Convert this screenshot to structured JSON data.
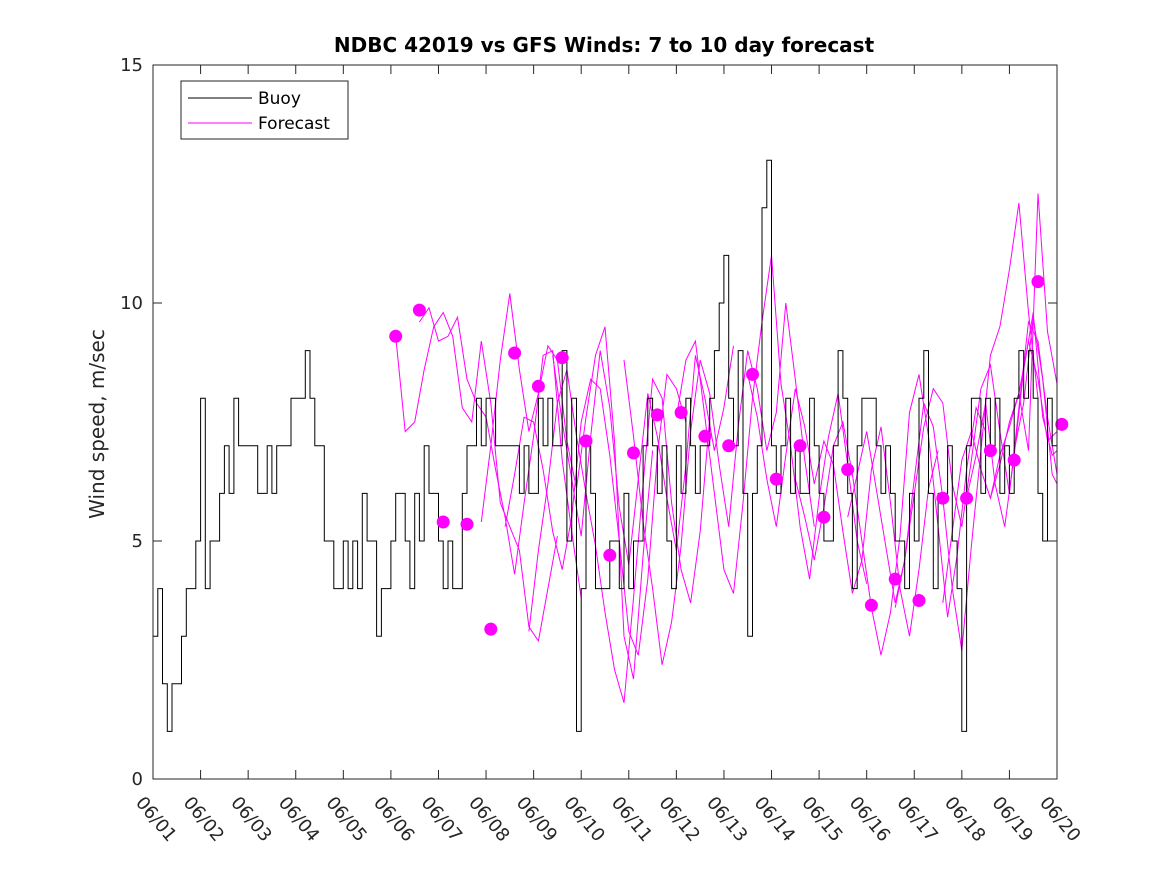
{
  "chart_data": {
    "type": "line",
    "title": "NDBC 42019 vs GFS Winds: 7 to 10 day forecast",
    "xlabel": "",
    "ylabel": "Wind speed, m/sec",
    "xlim": [
      "06/01",
      "06/20"
    ],
    "ylim": [
      0,
      15
    ],
    "x_ticks": [
      "06/01",
      "06/02",
      "06/03",
      "06/04",
      "06/05",
      "06/06",
      "06/07",
      "06/08",
      "06/09",
      "06/10",
      "06/11",
      "06/12",
      "06/13",
      "06/14",
      "06/15",
      "06/16",
      "06/17",
      "06/18",
      "06/19",
      "06/20"
    ],
    "y_ticks": [
      0,
      5,
      10,
      15
    ],
    "grid": false,
    "legend_position": "top-left",
    "legend": [
      {
        "label": "Buoy",
        "color": "#000000"
      },
      {
        "label": "Forecast",
        "color": "#ff00ff"
      }
    ],
    "series": [
      {
        "name": "Buoy",
        "color": "#000000",
        "x_days_since_0601": [
          0.0,
          0.1,
          0.2,
          0.3,
          0.4,
          0.5,
          0.6,
          0.7,
          0.8,
          0.9,
          1.0,
          1.1,
          1.2,
          1.3,
          1.4,
          1.5,
          1.6,
          1.7,
          1.8,
          1.9,
          2.0,
          2.1,
          2.2,
          2.3,
          2.4,
          2.5,
          2.6,
          2.7,
          2.8,
          2.9,
          3.0,
          3.1,
          3.2,
          3.3,
          3.4,
          3.5,
          3.6,
          3.7,
          3.8,
          3.9,
          4.0,
          4.1,
          4.2,
          4.3,
          4.4,
          4.5,
          4.6,
          4.7,
          4.8,
          4.9,
          5.0,
          5.1,
          5.2,
          5.3,
          5.4,
          5.5,
          5.6,
          5.7,
          5.8,
          5.9,
          6.0,
          6.1,
          6.2,
          6.3,
          6.4,
          6.5,
          6.6,
          6.7,
          6.8,
          6.9,
          7.0,
          7.1,
          7.2,
          7.3,
          7.4,
          7.5,
          7.6,
          7.7,
          7.8,
          7.9,
          8.0,
          8.1,
          8.2,
          8.3,
          8.4,
          8.5,
          8.6,
          8.7,
          8.8,
          8.9,
          9.0,
          9.1,
          9.2,
          9.3,
          9.4,
          9.5,
          9.6,
          9.7,
          9.8,
          9.9,
          10.0,
          10.1,
          10.2,
          10.3,
          10.4,
          10.5,
          10.6,
          10.7,
          10.8,
          10.9,
          11.0,
          11.1,
          11.2,
          11.3,
          11.4,
          11.5,
          11.6,
          11.7,
          11.8,
          11.9,
          12.0,
          12.1,
          12.2,
          12.3,
          12.4,
          12.5,
          12.6,
          12.7,
          12.8,
          12.9,
          13.0,
          13.1,
          13.2,
          13.3,
          13.4,
          13.5,
          13.6,
          13.7,
          13.8,
          13.9,
          14.0,
          14.1,
          14.2,
          14.3,
          14.4,
          14.5,
          14.6,
          14.7,
          14.8,
          14.9,
          15.0,
          15.1,
          15.2,
          15.3,
          15.4,
          15.5,
          15.6,
          15.7,
          15.8,
          15.9,
          16.0,
          16.1,
          16.2,
          16.3,
          16.4,
          16.5,
          16.6,
          16.7,
          16.8,
          16.9,
          17.0,
          17.1,
          17.2,
          17.3,
          17.4,
          17.5,
          17.6,
          17.7,
          17.8,
          17.9,
          18.0,
          18.1,
          18.2,
          18.3,
          18.4,
          18.5,
          18.6,
          18.7,
          18.8,
          18.9,
          19.0
        ],
        "values": [
          3,
          4,
          2,
          1,
          2,
          2,
          3,
          4,
          4,
          5,
          8,
          4,
          5,
          5,
          6,
          7,
          6,
          8,
          7,
          7,
          7,
          7,
          6,
          6,
          7,
          6,
          7,
          7,
          7,
          8,
          8,
          8,
          9,
          8,
          7,
          7,
          5,
          5,
          4,
          4,
          5,
          4,
          5,
          4,
          6,
          5,
          5,
          3,
          4,
          4,
          5,
          6,
          6,
          5,
          4,
          6,
          5,
          7,
          6,
          6,
          5,
          4,
          5,
          4,
          4,
          6,
          7,
          7,
          8,
          7,
          8,
          8,
          7,
          7,
          7,
          7,
          7,
          6,
          7,
          6,
          6,
          8,
          7,
          8,
          7,
          7,
          9,
          5,
          8,
          1,
          4,
          7,
          6,
          4,
          4,
          4,
          5,
          5,
          4,
          6,
          4,
          5,
          5,
          7,
          8,
          7,
          6,
          7,
          5,
          4,
          7,
          6,
          8,
          7,
          6,
          7,
          7,
          8,
          9,
          10,
          11,
          8,
          7,
          9,
          6,
          3,
          6,
          7,
          12,
          13,
          7,
          6,
          7,
          8,
          6,
          7,
          6,
          6,
          8,
          7,
          6,
          5,
          5,
          7,
          9,
          8,
          6,
          4,
          7,
          8,
          8,
          8,
          7,
          6,
          7,
          6,
          5,
          5,
          4,
          6,
          5,
          8,
          9,
          6,
          4,
          6,
          6,
          7,
          5,
          4,
          1,
          7,
          8,
          8,
          6,
          8,
          7,
          8,
          6,
          7,
          6,
          8,
          9,
          8,
          9,
          8,
          6,
          5,
          8,
          7
        ]
      },
      {
        "name": "Forecast",
        "color": "#ff00ff",
        "note": "several forecast run lines",
        "runs": [
          {
            "x": [
              5.1,
              5.3,
              5.5,
              5.7,
              5.9,
              6.1,
              6.3,
              6.5,
              6.7,
              6.9,
              7.1,
              7.3,
              7.5,
              7.7,
              7.9,
              8.1,
              8.3,
              8.5
            ],
            "y": [
              9.3,
              7.3,
              7.5,
              8.6,
              9.5,
              9.8,
              9.3,
              7.8,
              7.5,
              9.2,
              7.9,
              5.8,
              5.3,
              4.8,
              3.2,
              2.9,
              4.0,
              5.1
            ]
          },
          {
            "x": [
              5.6,
              5.8,
              6.0,
              6.2,
              6.4,
              6.6,
              6.8,
              7.0,
              7.2,
              7.4,
              7.6,
              7.8,
              8.0,
              8.2,
              8.4,
              8.6,
              8.8,
              9.0
            ],
            "y": [
              9.6,
              9.9,
              9.2,
              9.3,
              9.7,
              8.4,
              7.9,
              7.6,
              6.5,
              5.5,
              4.3,
              5.8,
              7.2,
              8.9,
              9.0,
              6.7,
              5.2,
              3.8
            ]
          },
          {
            "x": [
              6.9,
              7.1,
              7.3,
              7.5,
              7.7,
              7.9,
              8.1,
              8.3,
              8.5,
              8.7,
              8.9,
              9.1,
              9.3,
              9.5,
              9.7,
              9.9,
              10.1,
              10.3,
              10.5
            ],
            "y": [
              5.4,
              7.0,
              8.8,
              10.2,
              8.6,
              7.3,
              8.1,
              9.1,
              8.8,
              7.1,
              6.1,
              7.6,
              8.9,
              9.5,
              7.1,
              3.0,
              2.1,
              4.7,
              6.9
            ]
          },
          {
            "x": [
              7.4,
              7.6,
              7.8,
              8.0,
              8.2,
              8.4,
              8.6,
              8.8,
              9.0,
              9.2,
              9.4,
              9.6,
              9.8,
              10.0,
              10.2,
              10.4,
              10.6,
              10.8,
              11.0,
              11.2
            ],
            "y": [
              5.3,
              6.4,
              7.6,
              7.5,
              6.5,
              5.2,
              4.4,
              5.5,
              7.5,
              8.4,
              8.2,
              6.8,
              5.0,
              3.1,
              2.6,
              4.2,
              6.8,
              8.5,
              8.2,
              7.5
            ]
          },
          {
            "x": [
              7.9,
              8.1,
              8.3,
              8.5,
              8.7,
              8.9,
              9.1,
              9.3,
              9.5,
              9.7,
              9.9,
              10.1,
              10.3,
              10.5,
              10.7,
              10.9,
              11.1,
              11.3,
              11.5,
              11.7
            ],
            "y": [
              3.1,
              4.8,
              6.2,
              7.9,
              8.6,
              7.2,
              6.0,
              4.9,
              3.5,
              2.3,
              1.6,
              3.8,
              6.2,
              8.4,
              8.0,
              5.8,
              4.4,
              3.7,
              5.2,
              7.6
            ]
          },
          {
            "x": [
              8.4,
              8.6,
              8.8,
              9.0,
              9.2,
              9.4,
              9.6,
              9.8,
              10.0,
              10.2,
              10.4,
              10.6,
              10.8,
              11.0,
              11.2,
              11.4,
              11.6,
              11.8,
              12.0,
              12.2
            ],
            "y": [
              8.9,
              7.5,
              6.3,
              5.1,
              7.2,
              9.0,
              7.8,
              5.7,
              4.5,
              6.3,
              8.1,
              7.2,
              5.9,
              4.8,
              6.6,
              8.9,
              8.0,
              6.9,
              7.8,
              9.1
            ]
          },
          {
            "x": [
              9.9,
              10.1,
              10.3,
              10.5,
              10.7,
              10.9,
              11.1,
              11.3,
              11.5,
              11.7,
              11.9,
              12.1,
              12.3,
              12.5,
              12.7,
              12.9,
              13.1,
              13.3,
              13.5,
              13.7,
              13.9
            ],
            "y": [
              8.8,
              7.2,
              5.4,
              4.0,
              2.4,
              3.3,
              4.9,
              7.3,
              8.8,
              8.1,
              6.6,
              5.3,
              7.4,
              9.0,
              8.2,
              6.9,
              7.7,
              10.0,
              8.4,
              6.7,
              5.3
            ]
          },
          {
            "x": [
              11.0,
              11.2,
              11.4,
              11.6,
              11.8,
              12.0,
              12.2,
              12.4,
              12.6,
              12.8,
              13.0,
              13.2,
              13.4,
              13.6,
              13.8,
              14.0,
              14.2,
              14.4,
              14.6,
              14.8,
              15.0
            ],
            "y": [
              7.6,
              8.8,
              9.2,
              7.6,
              6.0,
              4.4,
              3.9,
              5.8,
              8.0,
              9.6,
              11.0,
              8.3,
              7.0,
              5.3,
              4.2,
              5.9,
              7.2,
              8.1,
              6.6,
              5.0,
              4.1
            ]
          },
          {
            "x": [
              12.5,
              12.7,
              12.9,
              13.1,
              13.3,
              13.5,
              13.7,
              13.9,
              14.1,
              14.3,
              14.5,
              14.7,
              14.9,
              15.1,
              15.3,
              15.5,
              15.7,
              15.9,
              16.1,
              16.3,
              16.5
            ],
            "y": [
              8.5,
              7.6,
              6.3,
              5.3,
              6.8,
              8.2,
              7.4,
              6.2,
              7.1,
              6.6,
              5.2,
              3.9,
              4.6,
              6.5,
              7.4,
              5.8,
              4.0,
              3.0,
              4.4,
              6.1,
              6.9
            ]
          },
          {
            "x": [
              13.5,
              13.7,
              13.9,
              14.1,
              14.3,
              14.5,
              14.7,
              14.9,
              15.1,
              15.3,
              15.5,
              15.7,
              15.9,
              16.1,
              16.3,
              16.5,
              16.7,
              16.9,
              17.1,
              17.3,
              17.5
            ],
            "y": [
              6.3,
              5.5,
              4.6,
              5.7,
              7.0,
              7.5,
              6.4,
              5.0,
              3.6,
              2.6,
              3.5,
              5.1,
              7.7,
              8.5,
              7.2,
              5.3,
              3.4,
              4.7,
              6.5,
              7.8,
              7.3
            ]
          },
          {
            "x": [
              14.6,
              14.8,
              15.0,
              15.2,
              15.4,
              15.6,
              15.8,
              16.0,
              16.2,
              16.4,
              16.6,
              16.8,
              17.0,
              17.2,
              17.4,
              17.6,
              17.8,
              18.0,
              18.2,
              18.4,
              18.6
            ],
            "y": [
              5.5,
              6.4,
              7.3,
              6.1,
              4.9,
              3.7,
              4.6,
              6.3,
              7.9,
              7.4,
              5.9,
              4.0,
              2.7,
              4.9,
              6.9,
              8.9,
              9.5,
              10.7,
              12.1,
              9.8,
              8.0
            ]
          },
          {
            "x": [
              15.6,
              15.8,
              16.0,
              16.2,
              16.4,
              16.6,
              16.8,
              17.0,
              17.2,
              17.4,
              17.6,
              17.8,
              18.0,
              18.2,
              18.4,
              18.6,
              18.8,
              19.0
            ],
            "y": [
              3.6,
              4.6,
              6.0,
              7.4,
              8.2,
              7.9,
              6.2,
              5.3,
              6.7,
              8.2,
              8.7,
              7.3,
              6.0,
              7.8,
              9.6,
              9.2,
              7.6,
              6.4
            ]
          },
          {
            "x": [
              16.6,
              16.8,
              17.0,
              17.2,
              17.4,
              17.6,
              17.8,
              18.0,
              18.2,
              18.4,
              18.6,
              18.8,
              19.0
            ],
            "y": [
              3.7,
              5.2,
              6.7,
              7.3,
              6.5,
              5.9,
              6.8,
              7.4,
              8.1,
              6.9,
              12.3,
              9.4,
              8.3
            ]
          },
          {
            "x": [
              17.1,
              17.3,
              17.5,
              17.7,
              17.9,
              18.1,
              18.3,
              18.5,
              18.7,
              18.9,
              19.0
            ],
            "y": [
              5.9,
              6.8,
              7.9,
              6.2,
              5.3,
              6.8,
              8.6,
              9.8,
              7.6,
              6.8,
              6.9
            ]
          },
          {
            "x": [
              17.6,
              17.8,
              18.0,
              18.2,
              18.4,
              18.6,
              18.8,
              19.0
            ],
            "y": [
              5.9,
              6.6,
              7.5,
              8.1,
              9.2,
              8.4,
              7.1,
              7.3
            ]
          },
          {
            "x": [
              18.1,
              18.3,
              18.5,
              18.7,
              18.9,
              19.0
            ],
            "y": [
              6.9,
              7.9,
              9.7,
              8.4,
              6.4,
              6.2
            ]
          }
        ],
        "markers": {
          "x": [
            5.1,
            5.6,
            6.1,
            6.6,
            7.1,
            7.6,
            8.1,
            8.6,
            9.1,
            9.6,
            10.1,
            10.6,
            11.1,
            11.6,
            12.1,
            12.6,
            13.1,
            13.6,
            14.1,
            14.6,
            15.1,
            15.6,
            16.1,
            16.6,
            17.1,
            17.6,
            18.1,
            18.6,
            19.1
          ],
          "y": [
            9.3,
            9.85,
            5.4,
            5.35,
            3.15,
            8.95,
            8.25,
            8.85,
            7.1,
            4.7,
            6.85,
            7.65,
            7.7,
            7.2,
            7.0,
            8.5,
            6.3,
            7.0,
            5.5,
            6.5,
            3.65,
            4.2,
            3.75,
            5.9,
            5.9,
            6.9,
            6.7,
            10.45,
            7.45
          ]
        }
      }
    ]
  }
}
